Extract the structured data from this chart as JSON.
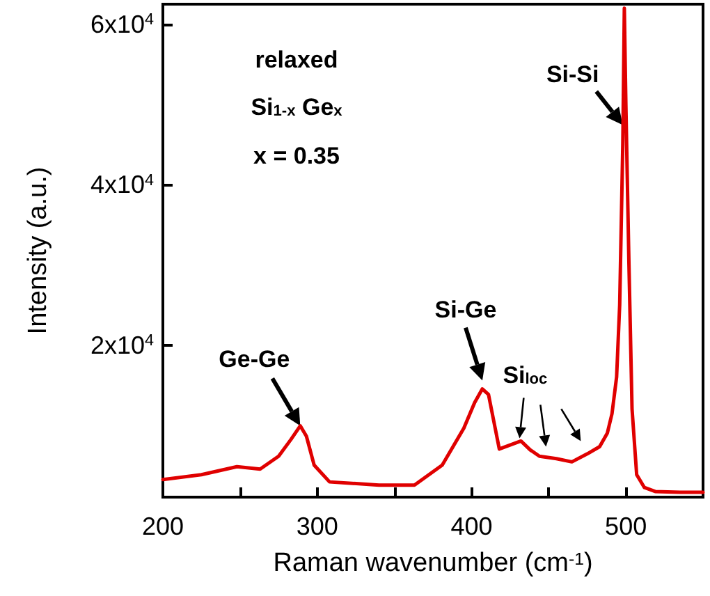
{
  "chart_data": {
    "type": "line",
    "xlabel": "Raman wavenumber (cm$^{-1}$)",
    "ylabel": "Intensity (a.u.)",
    "x": [
      200,
      225,
      248,
      263,
      275,
      283,
      289,
      293,
      298,
      308,
      340,
      363,
      381,
      395,
      402,
      407,
      411,
      418,
      425,
      432,
      438,
      444,
      455,
      465,
      475,
      483,
      488,
      491,
      494,
      496,
      498,
      499,
      500,
      502,
      504,
      507,
      512,
      519,
      535,
      550
    ],
    "series": [
      {
        "color": "#e00000",
        "values": [
          3200,
          3800,
          4800,
          4500,
          6100,
          8200,
          9900,
          8600,
          5000,
          2900,
          2500,
          2500,
          5000,
          9600,
          12800,
          14500,
          13800,
          7000,
          7500,
          8000,
          6900,
          6100,
          5800,
          5400,
          6400,
          7300,
          9000,
          11400,
          16000,
          25000,
          45000,
          62000,
          50000,
          30000,
          12000,
          3800,
          2200,
          1700,
          1600,
          1600
        ]
      }
    ],
    "xlim": [
      200,
      550
    ],
    "xticks": [
      200,
      {
        "value": 250,
        "label": null
      },
      300,
      {
        "value": 350,
        "label": null
      },
      400,
      {
        "value": 450,
        "label": null
      },
      500
    ],
    "ylim": [
      1000,
      62500
    ],
    "yticks": [
      {
        "value": 20000,
        "label": "2x10$^{4}$"
      },
      {
        "value": 40000,
        "label": "4x10$^{4}$"
      },
      {
        "value": 60000,
        "label": "6x10$^{4}$"
      }
    ],
    "marker": "none",
    "line_style": "solid",
    "grid": false,
    "annotations": [
      "relaxed",
      "Si$_{1-x}$ Ge$_{x}$",
      "x = 0.35",
      {
        "text": "Ge-Ge",
        "x": 289,
        "y": 9900
      },
      {
        "text": "Si-Ge",
        "x": 407,
        "y": 14500
      },
      {
        "text": "Si$_{loc}$",
        "x": 432,
        "y": 8000
      },
      {
        "text": "Si-Si",
        "x": 498,
        "y": 45000
      }
    ]
  }
}
